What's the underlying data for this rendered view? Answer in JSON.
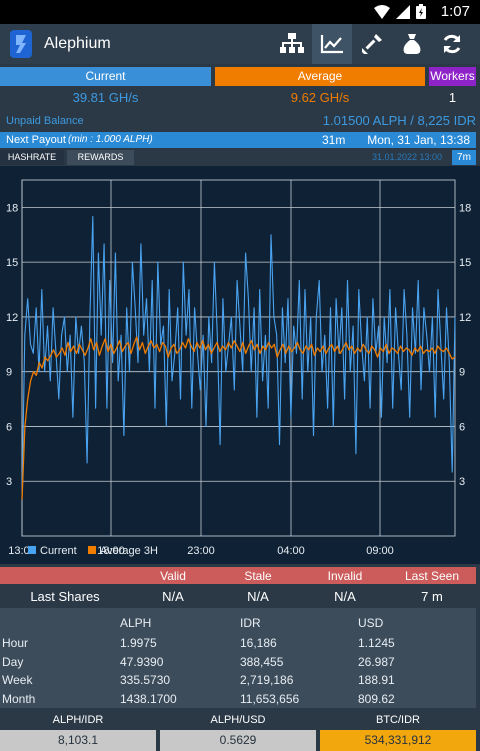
{
  "status": {
    "time": "1:07"
  },
  "app": {
    "title": "Alephium",
    "actions": [
      "workers-icon",
      "chart-icon",
      "miner-icon",
      "money-bag-icon",
      "refresh-icon"
    ]
  },
  "stats": {
    "current": {
      "label": "Current",
      "value": "39.81 GH/s",
      "color": "#3a90d8"
    },
    "average": {
      "label": "Average",
      "value": "9.62 GH/s",
      "color": "#f07c00"
    },
    "workers": {
      "label": "Workers",
      "value": "1",
      "color": "#8e24c8"
    }
  },
  "unpaid": {
    "label": "Unpaid Balance",
    "value": "1.01500 ALPH / 8,225 IDR"
  },
  "payout": {
    "label": "Next Payout",
    "min": "(min : 1.000 ALPH)",
    "eta": "31m",
    "date": "Mon, 31 Jan, 13:38"
  },
  "tabs": {
    "hashrate": "HASHRATE",
    "rewards": "REWARDS",
    "timestamp": "31.01.2022 13:00",
    "range": "7m"
  },
  "chart_data": {
    "type": "line",
    "x_ticks": [
      "13:00",
      "18:00",
      "23:00",
      "04:00",
      "09:00"
    ],
    "y_ticks": [
      "18",
      "15",
      "12",
      "9",
      "6",
      "3"
    ],
    "ylim": [
      0,
      19.5
    ],
    "grid": true,
    "legend_placement": "bottom",
    "series": [
      {
        "name": "Current",
        "color": "#4aa3f0",
        "values": [
          2.0,
          11.0,
          13.0,
          10.5,
          10.0,
          12.5,
          9.0,
          13.5,
          9.0,
          11.5,
          8.5,
          12.5,
          10.0,
          7.5,
          11.0,
          12.0,
          9.0,
          11.0,
          6.5,
          12.0,
          10.0,
          11.5,
          9.5,
          4.0,
          12.0,
          17.5,
          7.0,
          15.5,
          11.0,
          16.0,
          7.0,
          14.0,
          9.5,
          15.5,
          8.5,
          11.0,
          5.5,
          12.5,
          9.0,
          15.0,
          12.5,
          9.5,
          16.0,
          11.0,
          13.0,
          9.0,
          14.0,
          7.0,
          15.0,
          10.5,
          11.5,
          6.0,
          13.5,
          8.5,
          10.0,
          12.5,
          7.5,
          15.0,
          11.0,
          13.5,
          7.0,
          12.5,
          10.0,
          8.0,
          11.0,
          6.0,
          12.0,
          9.5,
          15.0,
          11.0,
          5.0,
          13.0,
          9.0,
          10.5,
          12.0,
          8.0,
          14.0,
          11.5,
          9.0,
          15.5,
          13.0,
          9.0,
          12.5,
          6.5,
          13.5,
          8.5,
          11.0,
          7.0,
          16.5,
          12.0,
          11.0,
          5.0,
          12.5,
          9.5,
          13.0,
          6.5,
          11.5,
          10.0,
          14.0,
          7.5,
          13.5,
          9.0,
          12.0,
          5.5,
          12.0,
          14.0,
          9.0,
          11.0,
          7.0,
          12.5,
          6.0,
          13.0,
          10.0,
          12.5,
          7.5,
          14.0,
          9.0,
          11.5,
          4.5,
          13.5,
          10.5,
          8.5,
          12.0,
          7.0,
          13.0,
          10.0,
          11.5,
          6.5,
          12.0,
          9.5,
          13.5,
          7.0,
          12.5,
          10.0,
          8.0,
          13.5,
          11.0,
          6.5,
          12.5,
          10.0,
          14.0,
          8.0,
          12.5,
          11.0,
          9.0,
          12.0,
          6.5,
          13.5,
          10.5,
          7.5,
          12.5,
          9.5,
          3.5,
          12.0
        ]
      },
      {
        "name": "Average 3H",
        "color": "#f07c00",
        "values": [
          2.0,
          6.0,
          7.5,
          8.5,
          9.0,
          8.8,
          9.5,
          9.2,
          9.8,
          9.6,
          9.9,
          10.2,
          9.8,
          10.0,
          10.3,
          9.9,
          10.6,
          10.1,
          10.4,
          10.0,
          10.5,
          10.2,
          9.9,
          10.3,
          10.8,
          10.2,
          10.6,
          9.9,
          10.4,
          10.8,
          10.1,
          10.5,
          10.0,
          10.3,
          10.7,
          10.1,
          10.4,
          10.6,
          10.0,
          10.5,
          10.9,
          10.2,
          10.6,
          10.0,
          10.4,
          10.7,
          10.3,
          10.5,
          10.1,
          10.6,
          10.4,
          9.8,
          10.3,
          10.5,
          10.0,
          10.2,
          10.6,
          10.3,
          10.8,
          10.4,
          10.1,
          10.6,
          10.3,
          10.7,
          10.2,
          10.5,
          10.0,
          10.3,
          10.6,
          10.1,
          10.4,
          10.2,
          10.6,
          10.3,
          10.7,
          10.4,
          10.1,
          10.6,
          10.0,
          10.4,
          10.7,
          10.2,
          10.5,
          10.0,
          10.4,
          10.2,
          10.6,
          10.3,
          10.5,
          9.8,
          10.2,
          10.5,
          10.0,
          10.4,
          10.1,
          10.3,
          10.6,
          10.2,
          10.0,
          10.4,
          10.2,
          10.5,
          9.9,
          10.3,
          10.1,
          10.4,
          10.0,
          10.3,
          10.5,
          10.1,
          10.4,
          10.0,
          10.3,
          10.6,
          10.2,
          10.4,
          10.0,
          10.3,
          10.1,
          10.5,
          10.2,
          10.0,
          10.4,
          10.2,
          9.8,
          10.3,
          10.1,
          10.5,
          10.0,
          10.3,
          10.2,
          10.0,
          10.4,
          10.1,
          10.3,
          10.2,
          9.9,
          10.3,
          10.1,
          10.4,
          10.0,
          10.2,
          10.1,
          10.3,
          10.0,
          10.4,
          10.2,
          10.1,
          10.3,
          10.0,
          9.7,
          9.8
        ]
      }
    ]
  },
  "shares": {
    "headers": [
      "Valid",
      "Stale",
      "Invalid",
      "Last Seen"
    ],
    "row_label": "Last Shares",
    "values": [
      "N/A",
      "N/A",
      "N/A",
      "7 m"
    ]
  },
  "earnings": {
    "columns": [
      "ALPH",
      "IDR",
      "USD"
    ],
    "rows": [
      {
        "label": "Hour",
        "values": [
          "1.9975",
          "16,186",
          "1.1245"
        ]
      },
      {
        "label": "Day",
        "values": [
          "47.9390",
          "388,455",
          "26.987"
        ]
      },
      {
        "label": "Week",
        "values": [
          "335.5730",
          "2,719,186",
          "188.91"
        ]
      },
      {
        "label": "Month",
        "values": [
          "1438.1700",
          "11,653,656",
          "809.62"
        ]
      }
    ]
  },
  "rates": [
    {
      "label": "ALPH/IDR",
      "value": "8,103.1",
      "color": "#c8c8c8"
    },
    {
      "label": "ALPH/USD",
      "value": "0.5629",
      "color": "#c8c8c8"
    },
    {
      "label": "BTC/IDR",
      "value": "534,331,912",
      "color": "#f2a70d"
    }
  ]
}
